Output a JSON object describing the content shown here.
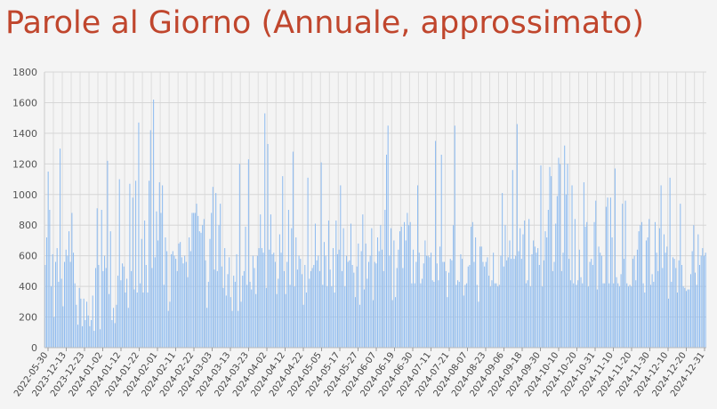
{
  "chart_data": {
    "type": "bar",
    "title": "Parole al Giorno (Annuale, approssimato)",
    "xlabel": "",
    "ylabel": "",
    "ylim": [
      0,
      1800
    ],
    "yticks": [
      0,
      200,
      400,
      600,
      800,
      1000,
      1200,
      1400,
      1600,
      1800
    ],
    "grid": true,
    "bar_color": "#8fbcf0",
    "tick_labels": [
      "2022-05-30",
      "2023-12-13",
      "2023-12-23",
      "2024-01-02",
      "2024-01-12",
      "2024-01-22",
      "2024-02-01",
      "2024-02-11",
      "2024-02-22",
      "2024-03-03",
      "2024-03-13",
      "2024-03-23",
      "2024-04-02",
      "2024-04-12",
      "2024-04-22",
      "2024-05-05",
      "2024-05-17",
      "2024-05-27",
      "2024-06-07",
      "2024-06-19",
      "2024-06-30",
      "2024-07-11",
      "2024-07-21",
      "2024-08-07",
      "2024-08-23",
      "2024-09-06",
      "2024-09-18",
      "2024-09-30",
      "2024-10-10",
      "2024-10-20",
      "2024-10-31",
      "2024-11-10",
      "2024-11-20",
      "2024-11-30",
      "2024-12-10",
      "2024-12-20",
      "2024-12-31"
    ],
    "values": [
      540,
      720,
      1150,
      900,
      400,
      610,
      200,
      560,
      650,
      430,
      1300,
      450,
      270,
      560,
      640,
      600,
      760,
      560,
      880,
      620,
      420,
      280,
      150,
      390,
      320,
      140,
      320,
      180,
      300,
      210,
      140,
      180,
      340,
      110,
      520,
      910,
      540,
      120,
      900,
      500,
      600,
      520,
      1220,
      350,
      760,
      180,
      260,
      160,
      280,
      470,
      1100,
      440,
      550,
      530,
      360,
      450,
      260,
      1070,
      500,
      980,
      380,
      1090,
      360,
      1470,
      420,
      710,
      360,
      830,
      540,
      360,
      1090,
      1420,
      520,
      1620,
      590,
      890,
      700,
      1080,
      880,
      1060,
      410,
      720,
      630,
      240,
      300,
      610,
      630,
      600,
      580,
      500,
      680,
      690,
      590,
      550,
      600,
      560,
      460,
      720,
      630,
      880,
      880,
      880,
      940,
      860,
      760,
      750,
      800,
      840,
      570,
      260,
      430,
      710,
      880,
      1050,
      510,
      1010,
      500,
      800,
      940,
      530,
      390,
      650,
      340,
      480,
      590,
      330,
      240,
      470,
      430,
      610,
      240,
      1200,
      300,
      470,
      500,
      790,
      410,
      1230,
      430,
      380,
      600,
      520,
      350,
      600,
      650,
      870,
      650,
      620,
      1530,
      390,
      1330,
      640,
      870,
      610,
      620,
      560,
      350,
      450,
      740,
      620,
      1120,
      500,
      350,
      560,
      900,
      410,
      780,
      1280,
      400,
      720,
      510,
      600,
      580,
      480,
      280,
      540,
      360,
      1110,
      450,
      500,
      520,
      540,
      810,
      570,
      600,
      500,
      1210,
      410,
      690,
      600,
      400,
      830,
      510,
      400,
      650,
      360,
      830,
      610,
      640,
      1060,
      500,
      780,
      400,
      600,
      560,
      570,
      810,
      540,
      490,
      330,
      530,
      680,
      280,
      630,
      870,
      380,
      680,
      450,
      560,
      600,
      780,
      310,
      560,
      550,
      720,
      630,
      800,
      640,
      500,
      900,
      1260,
      1450,
      600,
      780,
      310,
      700,
      330,
      520,
      640,
      760,
      790,
      520,
      820,
      700,
      880,
      800,
      820,
      420,
      640,
      420,
      560,
      1060,
      620,
      420,
      450,
      550,
      700,
      600,
      600,
      590,
      620,
      440,
      430,
      1350,
      550,
      440,
      660,
      1260,
      560,
      560,
      500,
      330,
      490,
      580,
      570,
      800,
      1450,
      410,
      440,
      430,
      610,
      580,
      340,
      410,
      420,
      530,
      540,
      790,
      820,
      560,
      720,
      410,
      300,
      660,
      660,
      560,
      530,
      560,
      590,
      470,
      400,
      440,
      620,
      420,
      420,
      400,
      410,
      600,
      1010,
      530,
      800,
      570,
      590,
      700,
      580,
      1160,
      580,
      600,
      1460,
      630,
      780,
      580,
      740,
      830,
      420,
      440,
      840,
      400,
      610,
      700,
      660,
      620,
      650,
      540,
      1190,
      400,
      570,
      760,
      720,
      900,
      1180,
      1120,
      500,
      560,
      810,
      990,
      1240,
      1200,
      500,
      620,
      1320,
      1000,
      1200,
      580,
      440,
      1060,
      420,
      840,
      410,
      440,
      640,
      460,
      420,
      1080,
      790,
      820,
      400,
      560,
      580,
      540,
      820,
      960,
      380,
      660,
      620,
      600,
      420,
      420,
      920,
      980,
      420,
      980,
      720,
      420,
      1170,
      460,
      420,
      400,
      480,
      940,
      580,
      960,
      420,
      400,
      410,
      400,
      580,
      600,
      440,
      640,
      760,
      800,
      820,
      420,
      360,
      700,
      720,
      840,
      410,
      480,
      430,
      820,
      620,
      500,
      780,
      1060,
      520,
      740,
      620,
      660,
      320,
      1110,
      430,
      590,
      580,
      520,
      360,
      570,
      940,
      540,
      400,
      390,
      370,
      380,
      380,
      480,
      630,
      800,
      490,
      410,
      740,
      540,
      600,
      650,
      600,
      620
    ]
  }
}
